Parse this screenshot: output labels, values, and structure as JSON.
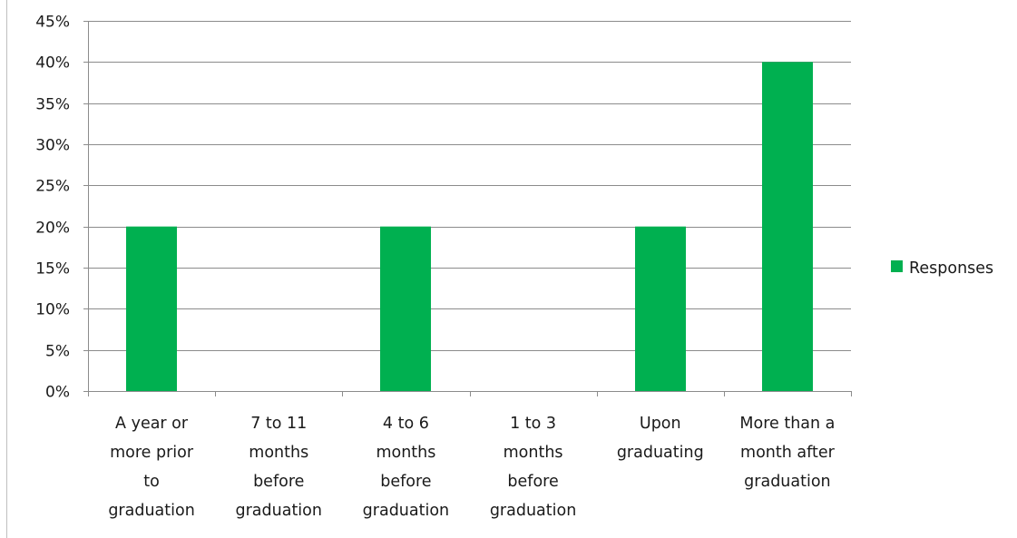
{
  "chart_data": {
    "type": "bar",
    "categories": [
      "A year or more prior to graduation",
      "7 to 11 months before graduation",
      "4 to 6 months before graduation",
      "1 to 3 months before graduation",
      "Upon graduating",
      "More than a month after graduation"
    ],
    "category_lines": [
      [
        "A year or",
        "more prior",
        "to",
        "graduation"
      ],
      [
        "7 to 11",
        "months",
        "before",
        "graduation"
      ],
      [
        "4 to 6",
        "months",
        "before",
        "graduation"
      ],
      [
        "1 to 3",
        "months",
        "before",
        "graduation"
      ],
      [
        "Upon",
        "graduating"
      ],
      [
        "More than a",
        "month after",
        "graduation"
      ]
    ],
    "series": [
      {
        "name": "Responses",
        "values": [
          20,
          0,
          20,
          0,
          20,
          40
        ],
        "color": "#00b050"
      }
    ],
    "ylim": [
      0,
      45
    ],
    "yticks": [
      0,
      5,
      10,
      15,
      20,
      25,
      30,
      35,
      40,
      45
    ],
    "ytick_labels": [
      "0%",
      "5%",
      "10%",
      "15%",
      "20%",
      "25%",
      "30%",
      "35%",
      "40%",
      "45%"
    ],
    "grid": true,
    "legend": {
      "position": "right",
      "label": "Responses"
    },
    "title": "",
    "xlabel": "",
    "ylabel": ""
  }
}
